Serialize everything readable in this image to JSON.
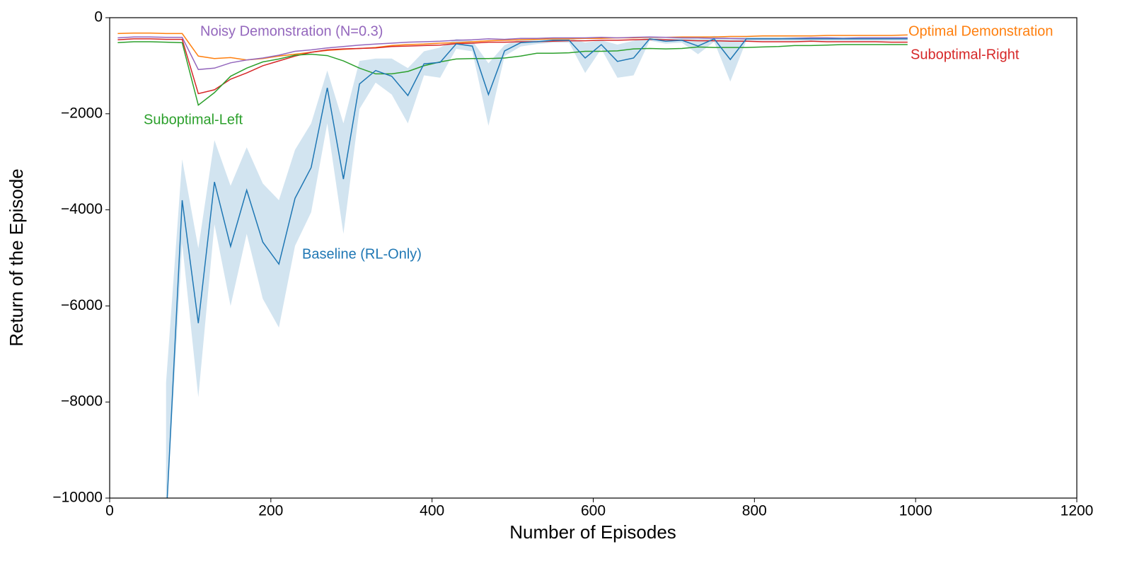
{
  "chart_data": {
    "type": "line",
    "xlabel": "Number of Episodes",
    "ylabel": "Return of the Episode",
    "xlim": [
      0,
      1200
    ],
    "ylim": [
      -10000,
      0
    ],
    "xticks": [
      0,
      200,
      400,
      600,
      800,
      1000,
      1200
    ],
    "yticks": [
      {
        "value": -10000,
        "label": "−10000"
      },
      {
        "value": -8000,
        "label": "−8000"
      },
      {
        "value": -6000,
        "label": "−6000"
      },
      {
        "value": -4000,
        "label": "−4000"
      },
      {
        "value": -2000,
        "label": "−2000"
      },
      0
    ],
    "x": [
      10,
      30,
      50,
      70,
      90,
      110,
      130,
      150,
      170,
      190,
      210,
      230,
      250,
      270,
      290,
      310,
      330,
      350,
      370,
      390,
      410,
      430,
      450,
      470,
      490,
      510,
      530,
      550,
      570,
      590,
      610,
      630,
      650,
      670,
      690,
      710,
      730,
      750,
      770,
      790,
      810,
      830,
      850,
      870,
      890,
      910,
      930,
      950,
      970,
      990
    ],
    "series": [
      {
        "name": "Baseline (RL-Only)",
        "color": "#1f77b4",
        "values": [
          null,
          null,
          null,
          -10500,
          -3800,
          -6360,
          -3420,
          -4760,
          -3590,
          -4670,
          -5130,
          -3760,
          -3120,
          -1460,
          -3360,
          -1380,
          -1100,
          -1220,
          -1620,
          -960,
          -930,
          -545,
          -590,
          -1600,
          -690,
          -520,
          -500,
          -470,
          -470,
          -840,
          -560,
          -910,
          -840,
          -440,
          -490,
          -470,
          -590,
          -440,
          -870,
          -440,
          -440,
          -440,
          -440,
          -440,
          -440,
          -440,
          -440,
          -440,
          -440,
          -440
        ],
        "lower": [
          null,
          null,
          null,
          -10500,
          -4700,
          -7900,
          -4300,
          -6000,
          -4500,
          -5850,
          -6450,
          -4750,
          -4050,
          -2200,
          -4500,
          -1900,
          -1350,
          -1600,
          -2200,
          -1200,
          -1250,
          -650,
          -700,
          -2250,
          -800,
          -600,
          -550,
          -520,
          -520,
          -1150,
          -650,
          -1250,
          -1200,
          -480,
          -540,
          -520,
          -760,
          -500,
          -1330,
          -480,
          -480,
          -480,
          -480,
          -480,
          -480,
          -480,
          -480,
          -480,
          -480,
          -480
        ],
        "upper": [
          null,
          null,
          null,
          -7600,
          -2950,
          -4800,
          -2550,
          -3500,
          -2700,
          -3450,
          -3800,
          -2750,
          -2200,
          -1100,
          -2200,
          -900,
          -850,
          -850,
          -1050,
          -700,
          -620,
          -440,
          -480,
          -950,
          -570,
          -440,
          -450,
          -420,
          -420,
          -520,
          -470,
          -560,
          -480,
          -400,
          -440,
          -420,
          -430,
          -380,
          -420,
          -400,
          -400,
          -400,
          -400,
          -400,
          -400,
          -400,
          -400,
          -400,
          -400,
          -400
        ]
      },
      {
        "name": "Suboptimal-Left",
        "color": "#2ca02c",
        "values": [
          -520,
          -500,
          -500,
          -510,
          -520,
          -1820,
          -1560,
          -1220,
          -1050,
          -920,
          -860,
          -780,
          -760,
          -790,
          -900,
          -1050,
          -1170,
          -1170,
          -1120,
          -1000,
          -920,
          -860,
          -850,
          -850,
          -840,
          -800,
          -740,
          -740,
          -730,
          -700,
          -700,
          -690,
          -650,
          -640,
          -650,
          -640,
          -610,
          -620,
          -620,
          -620,
          -610,
          -600,
          -580,
          -580,
          -570,
          -560,
          -560,
          -560,
          -560,
          -560
        ]
      },
      {
        "name": "Suboptimal-Right",
        "color": "#d62728",
        "values": [
          -460,
          -440,
          -440,
          -450,
          -450,
          -1580,
          -1500,
          -1280,
          -1150,
          -1000,
          -900,
          -800,
          -720,
          -670,
          -650,
          -640,
          -630,
          -600,
          -590,
          -580,
          -570,
          -540,
          -530,
          -510,
          -510,
          -500,
          -500,
          -490,
          -480,
          -480,
          -470,
          -470,
          -460,
          -450,
          -460,
          -470,
          -480,
          -480,
          -490,
          -490,
          -500,
          -500,
          -500,
          -490,
          -500,
          -500,
          -500,
          -500,
          -510,
          -510
        ]
      },
      {
        "name": "Noisy Demonstration (N=0.3)",
        "color": "#9467bd",
        "values": [
          -420,
          -400,
          -400,
          -410,
          -410,
          -1080,
          -1050,
          -940,
          -880,
          -840,
          -780,
          -700,
          -670,
          -630,
          -600,
          -570,
          -550,
          -530,
          -510,
          -500,
          -490,
          -470,
          -460,
          -440,
          -450,
          -430,
          -430,
          -420,
          -420,
          -420,
          -410,
          -420,
          -410,
          -400,
          -410,
          -420,
          -420,
          -430,
          -430,
          -440,
          -440,
          -440,
          -430,
          -420,
          -420,
          -430,
          -420,
          -420,
          -420,
          -420
        ]
      },
      {
        "name": "Optimal Demonstration",
        "color": "#ff7f0e",
        "values": [
          -330,
          -320,
          -320,
          -330,
          -330,
          -800,
          -850,
          -830,
          -880,
          -850,
          -800,
          -760,
          -720,
          -680,
          -660,
          -640,
          -620,
          -580,
          -560,
          -550,
          -530,
          -520,
          -500,
          -480,
          -470,
          -460,
          -450,
          -440,
          -440,
          -430,
          -430,
          -420,
          -420,
          -410,
          -410,
          -400,
          -400,
          -400,
          -390,
          -390,
          -380,
          -380,
          -380,
          -380,
          -370,
          -370,
          -370,
          -370,
          -370,
          -360
        ]
      }
    ]
  }
}
